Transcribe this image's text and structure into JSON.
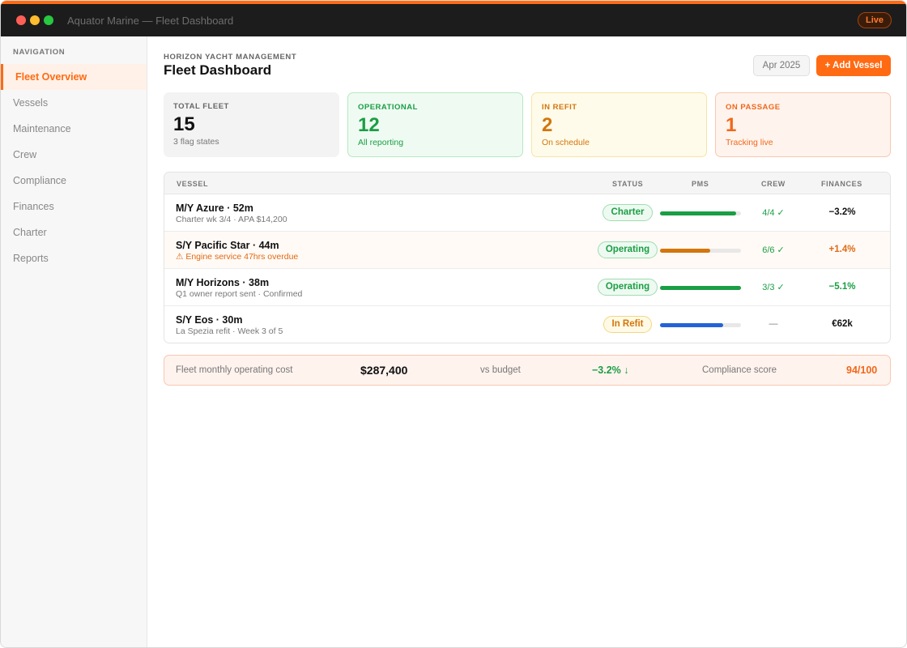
{
  "window": {
    "title": "Aquator Marine — Fleet Dashboard",
    "live_label": "Live"
  },
  "sidebar": {
    "heading": "NAVIGATION",
    "items": [
      {
        "label": "Fleet Overview",
        "active": true
      },
      {
        "label": "Vessels"
      },
      {
        "label": "Maintenance"
      },
      {
        "label": "Crew"
      },
      {
        "label": "Compliance"
      },
      {
        "label": "Finances"
      },
      {
        "label": "Charter"
      },
      {
        "label": "Reports"
      }
    ]
  },
  "header": {
    "org": "HORIZON YACHT MANAGEMENT",
    "title": "Fleet Dashboard",
    "date_label": "Apr 2025",
    "add_label": "+ Add Vessel"
  },
  "stats": [
    {
      "label": "TOTAL FLEET",
      "value": "15",
      "sub": "3 flag states"
    },
    {
      "label": "OPERATIONAL",
      "value": "12",
      "sub": "All reporting"
    },
    {
      "label": "IN REFIT",
      "value": "2",
      "sub": "On schedule"
    },
    {
      "label": "ON PASSAGE",
      "value": "1",
      "sub": "Tracking live"
    }
  ],
  "table": {
    "columns": [
      "VESSEL",
      "STATUS",
      "PMS",
      "CREW",
      "FINANCES"
    ],
    "rows": [
      {
        "name": "M/Y Azure · 52m",
        "sub": "Charter wk 3/4 · APA $14,200",
        "status": "Charter",
        "pms": 0.94,
        "pms_color": "#1a9e45",
        "crew": "4/4 ✓",
        "finance": "−3.2%",
        "finance_color": "#111111"
      },
      {
        "name": "S/Y Pacific Star · 44m",
        "sub": "⚠ Engine service 47hrs overdue",
        "status": "Operating",
        "pms": 0.62,
        "pms_color": "#d3760b",
        "crew": "6/6 ✓",
        "finance": "+1.4%",
        "finance_color": "#e06a12"
      },
      {
        "name": "M/Y Horizons · 38m",
        "sub": "Q1 owner report sent · Confirmed",
        "status": "Operating",
        "pms": 1.0,
        "pms_color": "#1a9e45",
        "crew": "3/3 ✓",
        "finance": "−5.1%",
        "finance_color": "#1a9e45"
      },
      {
        "name": "S/Y Eos · 30m",
        "sub": "La Spezia refit · Week 3 of 5",
        "status": "In Refit",
        "pms": 0.78,
        "pms_color": "#2463d6",
        "crew": "—",
        "finance": "€62k",
        "finance_color": "#111111"
      }
    ]
  },
  "summary": {
    "cost_label": "Fleet monthly operating cost",
    "cost_value": "$287,400",
    "budget_label": "vs budget",
    "budget_value": "−3.2% ↓",
    "compliance_label": "Compliance score",
    "compliance_value": "94/100"
  },
  "colors": {
    "accent": "#ff6a13",
    "green": "#1a9e45",
    "amber": "#d3760b",
    "blue": "#2463d6"
  }
}
